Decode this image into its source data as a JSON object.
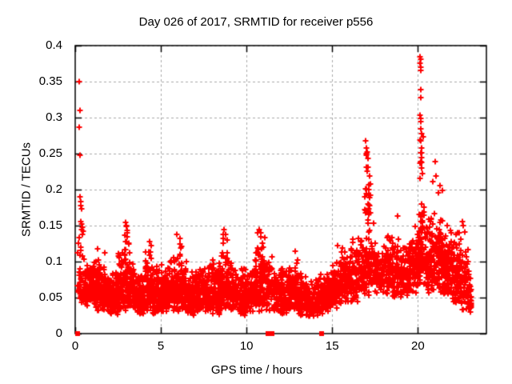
{
  "chart_data": {
    "type": "scatter",
    "title": "Day 026 of 2017, SRMTID for receiver p556",
    "xlabel": "GPS time / hours",
    "ylabel": "SRMTID / TECUs",
    "xlim": [
      0,
      24
    ],
    "ylim": [
      0,
      0.4
    ],
    "xticks": [
      0,
      5,
      10,
      15,
      20
    ],
    "xtick_labels": [
      "0",
      "5",
      "10",
      "15",
      "20"
    ],
    "yticks": [
      0,
      0.05,
      0.1,
      0.15,
      0.2,
      0.25,
      0.3,
      0.35,
      0.4
    ],
    "ytick_labels": [
      "0",
      "0.05",
      "0.1",
      "0.15",
      "0.2",
      "0.25",
      "0.3",
      "0.35",
      "0.4"
    ],
    "grid": true,
    "legend_position": "none",
    "marker": "plus",
    "marker_color": "#ff0000",
    "grid_color": "#a8a8a8",
    "border_color": "#000000",
    "background_color": "#ffffff",
    "random_seed": 20170126,
    "band_segments": [
      [
        0.15,
        0.6,
        0.04,
        0.13,
        45
      ],
      [
        0.6,
        1.0,
        0.035,
        0.1,
        70
      ],
      [
        1.0,
        1.5,
        0.03,
        0.11,
        95
      ],
      [
        1.5,
        2.0,
        0.03,
        0.1,
        95
      ],
      [
        2.0,
        2.5,
        0.025,
        0.09,
        95
      ],
      [
        2.5,
        3.0,
        0.03,
        0.12,
        95
      ],
      [
        2.85,
        3.15,
        0.1,
        0.155,
        12
      ],
      [
        3.0,
        3.5,
        0.03,
        0.12,
        95
      ],
      [
        3.5,
        4.0,
        0.025,
        0.09,
        90
      ],
      [
        4.0,
        4.5,
        0.03,
        0.12,
        90
      ],
      [
        4.5,
        5.0,
        0.025,
        0.1,
        90
      ],
      [
        5.0,
        5.5,
        0.03,
        0.1,
        85
      ],
      [
        5.5,
        6.0,
        0.03,
        0.11,
        85
      ],
      [
        5.95,
        6.25,
        0.09,
        0.14,
        8
      ],
      [
        6.0,
        6.5,
        0.03,
        0.11,
        85
      ],
      [
        6.5,
        7.0,
        0.025,
        0.09,
        85
      ],
      [
        7.0,
        7.5,
        0.03,
        0.1,
        85
      ],
      [
        7.5,
        8.0,
        0.03,
        0.1,
        85
      ],
      [
        8.0,
        8.5,
        0.025,
        0.11,
        85
      ],
      [
        8.5,
        9.0,
        0.03,
        0.12,
        85
      ],
      [
        8.6,
        8.9,
        0.1,
        0.145,
        8
      ],
      [
        9.0,
        9.5,
        0.03,
        0.1,
        85
      ],
      [
        9.5,
        10.0,
        0.025,
        0.095,
        85
      ],
      [
        10.0,
        10.5,
        0.03,
        0.1,
        85
      ],
      [
        10.5,
        11.0,
        0.03,
        0.13,
        85
      ],
      [
        10.6,
        11.0,
        0.1,
        0.145,
        8
      ],
      [
        11.0,
        11.5,
        0.03,
        0.12,
        70
      ],
      [
        11.55,
        12.0,
        0.03,
        0.09,
        60
      ],
      [
        12.0,
        12.5,
        0.025,
        0.1,
        85
      ],
      [
        12.5,
        13.0,
        0.03,
        0.11,
        85
      ],
      [
        13.0,
        13.5,
        0.025,
        0.095,
        85
      ],
      [
        13.5,
        14.0,
        0.02,
        0.08,
        75
      ],
      [
        14.0,
        14.5,
        0.025,
        0.085,
        75
      ],
      [
        14.5,
        15.0,
        0.03,
        0.09,
        80
      ],
      [
        15.0,
        15.5,
        0.035,
        0.11,
        85
      ],
      [
        15.5,
        16.0,
        0.04,
        0.12,
        85
      ],
      [
        16.0,
        16.5,
        0.04,
        0.13,
        80
      ],
      [
        16.5,
        17.0,
        0.05,
        0.14,
        70
      ],
      [
        16.9,
        17.25,
        0.13,
        0.27,
        32
      ],
      [
        17.0,
        17.5,
        0.05,
        0.16,
        70
      ],
      [
        17.5,
        18.0,
        0.05,
        0.13,
        70
      ],
      [
        18.0,
        18.5,
        0.055,
        0.14,
        70
      ],
      [
        18.5,
        19.0,
        0.05,
        0.14,
        70
      ],
      [
        19.0,
        19.5,
        0.05,
        0.13,
        70
      ],
      [
        19.5,
        20.0,
        0.055,
        0.16,
        80
      ],
      [
        20.0,
        20.5,
        0.06,
        0.19,
        90
      ],
      [
        20.1,
        20.3,
        0.19,
        0.31,
        10
      ],
      [
        20.5,
        21.0,
        0.05,
        0.17,
        90
      ],
      [
        21.0,
        21.5,
        0.055,
        0.19,
        90
      ],
      [
        21.5,
        22.0,
        0.05,
        0.16,
        90
      ],
      [
        22.0,
        22.5,
        0.04,
        0.15,
        80
      ],
      [
        22.5,
        23.0,
        0.03,
        0.13,
        70
      ],
      [
        23.0,
        23.15,
        0.02,
        0.08,
        20
      ]
    ],
    "outlier_points": [
      [
        0.25,
        0.35
      ],
      [
        0.26,
        0.31
      ],
      [
        0.25,
        0.287
      ],
      [
        0.27,
        0.248
      ],
      [
        0.3,
        0.19
      ],
      [
        0.33,
        0.178
      ],
      [
        0.34,
        0.183
      ],
      [
        0.36,
        0.173
      ],
      [
        0.33,
        0.156
      ],
      [
        0.38,
        0.152
      ],
      [
        0.42,
        0.148
      ],
      [
        0.36,
        0.145
      ],
      [
        0.45,
        0.142
      ],
      [
        0.4,
        0.138
      ],
      [
        0.22,
        0.133
      ],
      [
        0.2,
        0.126
      ],
      [
        1.3,
        0.118
      ],
      [
        1.75,
        0.112
      ],
      [
        2.92,
        0.155
      ],
      [
        3.0,
        0.149
      ],
      [
        3.05,
        0.143
      ],
      [
        4.35,
        0.128
      ],
      [
        4.45,
        0.122
      ],
      [
        5.95,
        0.138
      ],
      [
        6.1,
        0.132
      ],
      [
        8.7,
        0.145
      ],
      [
        8.78,
        0.138
      ],
      [
        8.85,
        0.13
      ],
      [
        10.75,
        0.145
      ],
      [
        10.85,
        0.14
      ],
      [
        11.05,
        0.133
      ],
      [
        12.85,
        0.115
      ],
      [
        15.3,
        0.122
      ],
      [
        16.2,
        0.131
      ],
      [
        16.93,
        0.268
      ],
      [
        16.98,
        0.258
      ],
      [
        17.03,
        0.252
      ],
      [
        17.08,
        0.243
      ],
      [
        18.8,
        0.163
      ],
      [
        20.13,
        0.385
      ],
      [
        20.18,
        0.381
      ],
      [
        20.14,
        0.376
      ],
      [
        20.19,
        0.37
      ],
      [
        20.16,
        0.366
      ],
      [
        20.18,
        0.339
      ],
      [
        20.15,
        0.328
      ],
      [
        20.14,
        0.303
      ],
      [
        20.19,
        0.299
      ],
      [
        20.16,
        0.294
      ],
      [
        20.12,
        0.269
      ],
      [
        20.16,
        0.251
      ],
      [
        20.2,
        0.244
      ],
      [
        20.13,
        0.237
      ],
      [
        20.22,
        0.23
      ],
      [
        20.85,
        0.211
      ],
      [
        21.0,
        0.239
      ],
      [
        21.04,
        0.219
      ],
      [
        21.3,
        0.206
      ],
      [
        21.45,
        0.199
      ],
      [
        21.2,
        0.196
      ],
      [
        22.58,
        0.156
      ],
      [
        22.66,
        0.15
      ],
      [
        22.74,
        0.141
      ],
      [
        22.52,
        0.131
      ]
    ],
    "zero_marker": "filled-square",
    "zero_marker_points": [
      [
        0.12,
        0
      ],
      [
        11.27,
        0
      ],
      [
        11.47,
        0
      ],
      [
        14.38,
        0
      ]
    ]
  }
}
